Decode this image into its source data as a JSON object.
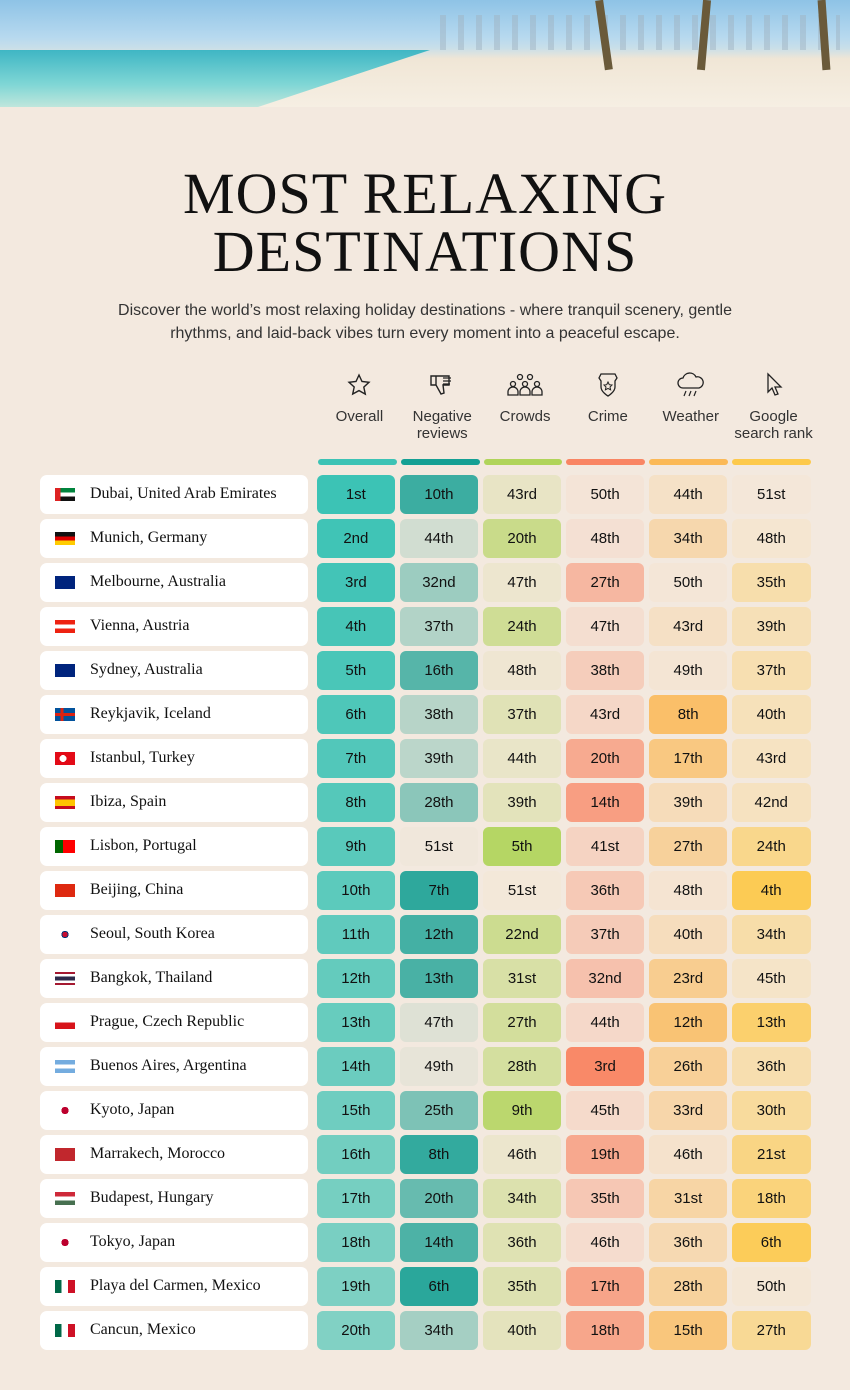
{
  "title_line1": "MOST RELAXING",
  "title_line2": "DESTINATIONS",
  "subtitle": "Discover the world’s most relaxing holiday destinations - where tranquil scenery, gentle rhythms, and laid-back vibes turn every moment into a peaceful escape.",
  "columns": [
    {
      "label": "Overall",
      "icon": "star-icon",
      "color": "#3cc3b5"
    },
    {
      "label": "Negative reviews",
      "icon": "thumbs-down-icon",
      "color": "#14a094"
    },
    {
      "label": "Crowds",
      "icon": "people-icon",
      "color": "#b0d45a"
    },
    {
      "label": "Crime",
      "icon": "police-badge-icon",
      "color": "#f98563"
    },
    {
      "label": "Weather",
      "icon": "rain-cloud-icon",
      "color": "#fbb957"
    },
    {
      "label": "Google search rank",
      "icon": "cursor-icon",
      "color": "#fdc94b"
    }
  ],
  "rows": [
    {
      "name": "Dubai, United Arab Emirates",
      "flag": "ae",
      "ranks": [
        "1st",
        "10th",
        "43rd",
        "50th",
        "44th",
        "51st"
      ]
    },
    {
      "name": "Munich, Germany",
      "flag": "de",
      "ranks": [
        "2nd",
        "44th",
        "20th",
        "48th",
        "34th",
        "48th"
      ]
    },
    {
      "name": "Melbourne, Australia",
      "flag": "au",
      "ranks": [
        "3rd",
        "32nd",
        "47th",
        "27th",
        "50th",
        "35th"
      ]
    },
    {
      "name": "Vienna, Austria",
      "flag": "at",
      "ranks": [
        "4th",
        "37th",
        "24th",
        "47th",
        "43rd",
        "39th"
      ]
    },
    {
      "name": "Sydney, Australia",
      "flag": "au",
      "ranks": [
        "5th",
        "16th",
        "48th",
        "38th",
        "49th",
        "37th"
      ]
    },
    {
      "name": "Reykjavik, Iceland",
      "flag": "is",
      "ranks": [
        "6th",
        "38th",
        "37th",
        "43rd",
        "8th",
        "40th"
      ]
    },
    {
      "name": "Istanbul, Turkey",
      "flag": "tr",
      "ranks": [
        "7th",
        "39th",
        "44th",
        "20th",
        "17th",
        "43rd"
      ]
    },
    {
      "name": "Ibiza, Spain",
      "flag": "es",
      "ranks": [
        "8th",
        "28th",
        "39th",
        "14th",
        "39th",
        "42nd"
      ]
    },
    {
      "name": "Lisbon, Portugal",
      "flag": "pt",
      "ranks": [
        "9th",
        "51st",
        "5th",
        "41st",
        "27th",
        "24th"
      ]
    },
    {
      "name": "Beijing, China",
      "flag": "cn",
      "ranks": [
        "10th",
        "7th",
        "51st",
        "36th",
        "48th",
        "4th"
      ]
    },
    {
      "name": "Seoul, South Korea",
      "flag": "kr",
      "ranks": [
        "11th",
        "12th",
        "22nd",
        "37th",
        "40th",
        "34th"
      ]
    },
    {
      "name": "Bangkok, Thailand",
      "flag": "th",
      "ranks": [
        "12th",
        "13th",
        "31st",
        "32nd",
        "23rd",
        "45th"
      ]
    },
    {
      "name": "Prague, Czech Republic",
      "flag": "cz",
      "ranks": [
        "13th",
        "47th",
        "27th",
        "44th",
        "12th",
        "13th"
      ]
    },
    {
      "name": "Buenos Aires, Argentina",
      "flag": "ar",
      "ranks": [
        "14th",
        "49th",
        "28th",
        "3rd",
        "26th",
        "36th"
      ]
    },
    {
      "name": "Kyoto, Japan",
      "flag": "jp",
      "ranks": [
        "15th",
        "25th",
        "9th",
        "45th",
        "33rd",
        "30th"
      ]
    },
    {
      "name": "Marrakech, Morocco",
      "flag": "ma",
      "ranks": [
        "16th",
        "8th",
        "46th",
        "19th",
        "46th",
        "21st"
      ]
    },
    {
      "name": "Budapest, Hungary",
      "flag": "hu",
      "ranks": [
        "17th",
        "20th",
        "34th",
        "35th",
        "31st",
        "18th"
      ]
    },
    {
      "name": "Tokyo, Japan",
      "flag": "jp",
      "ranks": [
        "18th",
        "14th",
        "36th",
        "46th",
        "36th",
        "6th"
      ]
    },
    {
      "name": "Playa del Carmen, Mexico",
      "flag": "mx",
      "ranks": [
        "19th",
        "6th",
        "35th",
        "17th",
        "28th",
        "50th"
      ]
    },
    {
      "name": "Cancun, Mexico",
      "flag": "mx",
      "ranks": [
        "20th",
        "34th",
        "40th",
        "18th",
        "15th",
        "27th"
      ]
    }
  ]
}
